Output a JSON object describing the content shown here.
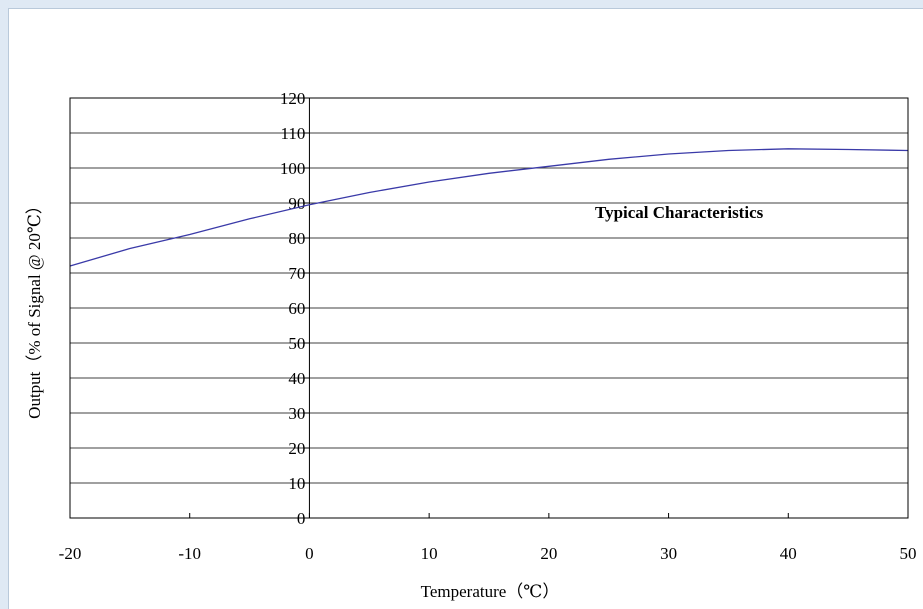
{
  "chart_data": {
    "type": "line",
    "annotation": "Typical Characteristics",
    "xlabel": "Temperature（℃）",
    "ylabel": "Output（% of Signal @ 20℃）",
    "xlim": [
      -20,
      50
    ],
    "ylim": [
      0,
      120
    ],
    "x_ticks": [
      "-20",
      "-10",
      "0",
      "10",
      "20",
      "30",
      "40",
      "50"
    ],
    "y_ticks": [
      "0",
      "10",
      "20",
      "30",
      "40",
      "50",
      "60",
      "70",
      "80",
      "90",
      "100",
      "110",
      "120"
    ],
    "grid": "horizontal",
    "series": [
      {
        "color": "#3a3aa8",
        "x": [
          -20,
          -15,
          -10,
          -5,
          0,
          5,
          10,
          15,
          20,
          25,
          30,
          35,
          40,
          45,
          50
        ],
        "y": [
          72,
          77,
          81,
          85.5,
          89.5,
          93,
          96,
          98.5,
          100.5,
          102.5,
          104,
          105,
          105.5,
          105.3,
          105
        ]
      }
    ]
  }
}
